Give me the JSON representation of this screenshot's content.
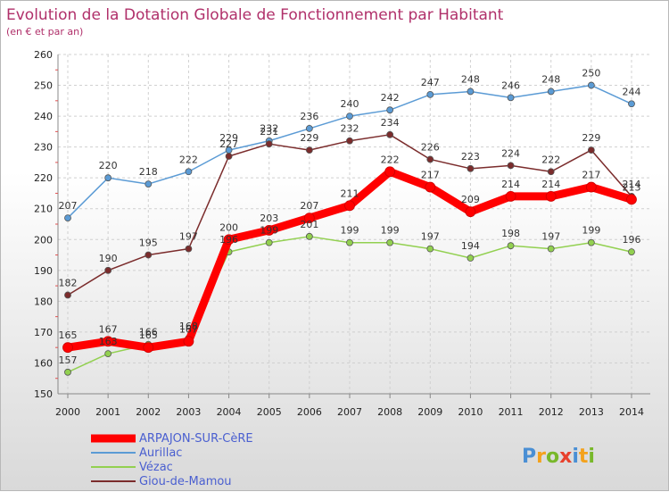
{
  "chart_data": {
    "type": "line",
    "title": "Evolution de la Dotation Globale de Fonctionnement par Habitant",
    "subtitle": "(en € et par an)",
    "x": [
      "2000",
      "2001",
      "2002",
      "2003",
      "2004",
      "2005",
      "2006",
      "2007",
      "2008",
      "2009",
      "2010",
      "2011",
      "2012",
      "2013",
      "2014"
    ],
    "yticks": [
      "150",
      "160",
      "170",
      "180",
      "190",
      "200",
      "210",
      "220",
      "230",
      "240",
      "250",
      "260"
    ],
    "ylim": [
      150,
      260
    ],
    "series": [
      {
        "name": "ARPAJON-SUR-CèRE",
        "color": "#ff0000",
        "highlight": true,
        "values": [
          165,
          167,
          165,
          167,
          200,
          203,
          207,
          211,
          222,
          217,
          209,
          214,
          214,
          217,
          213
        ],
        "labels": [
          "165",
          "167",
          "165",
          "167",
          "200",
          "203",
          "207",
          "211",
          "222",
          "217",
          "209",
          "214",
          "214",
          "217",
          "213"
        ]
      },
      {
        "name": "Aurillac",
        "color": "#5b9bd5",
        "highlight": false,
        "values": [
          207,
          220,
          218,
          222,
          229,
          232,
          236,
          240,
          242,
          247,
          248,
          246,
          248,
          250,
          244
        ],
        "labels": [
          "207",
          "220",
          "218",
          "222",
          "229",
          "232",
          "236",
          "240",
          "242",
          "247",
          "248",
          "246",
          "248",
          "250",
          "244"
        ]
      },
      {
        "name": "Vézac",
        "color": "#92d050",
        "highlight": false,
        "values": [
          157,
          163,
          166,
          168,
          196,
          199,
          201,
          199,
          199,
          197,
          194,
          198,
          197,
          199,
          196
        ],
        "labels": [
          "157",
          "163",
          "166",
          "168",
          "196",
          "199",
          "201",
          "199",
          "199",
          "197",
          "194",
          "198",
          "197",
          "199",
          "196"
        ]
      },
      {
        "name": "Giou-de-Mamou",
        "color": "#7b2c2c",
        "highlight": false,
        "values": [
          182,
          190,
          195,
          197,
          227,
          231,
          229,
          232,
          234,
          226,
          223,
          224,
          222,
          229,
          214
        ],
        "labels": [
          "182",
          "190",
          "195",
          "197",
          "227",
          "231",
          "229",
          "232",
          "234",
          "226",
          "223",
          "224",
          "222",
          "229",
          "214"
        ]
      }
    ],
    "legend_position": "bottom-left",
    "grid": true
  },
  "brand": {
    "logo_letters": [
      "P",
      "r",
      "o",
      "x",
      "i",
      "t",
      "i"
    ],
    "logo_colors": [
      "#4a8fd4",
      "#f4a21c",
      "#78b82a",
      "#e8412c",
      "#4a8fd4",
      "#f4a21c",
      "#78b82a"
    ]
  }
}
